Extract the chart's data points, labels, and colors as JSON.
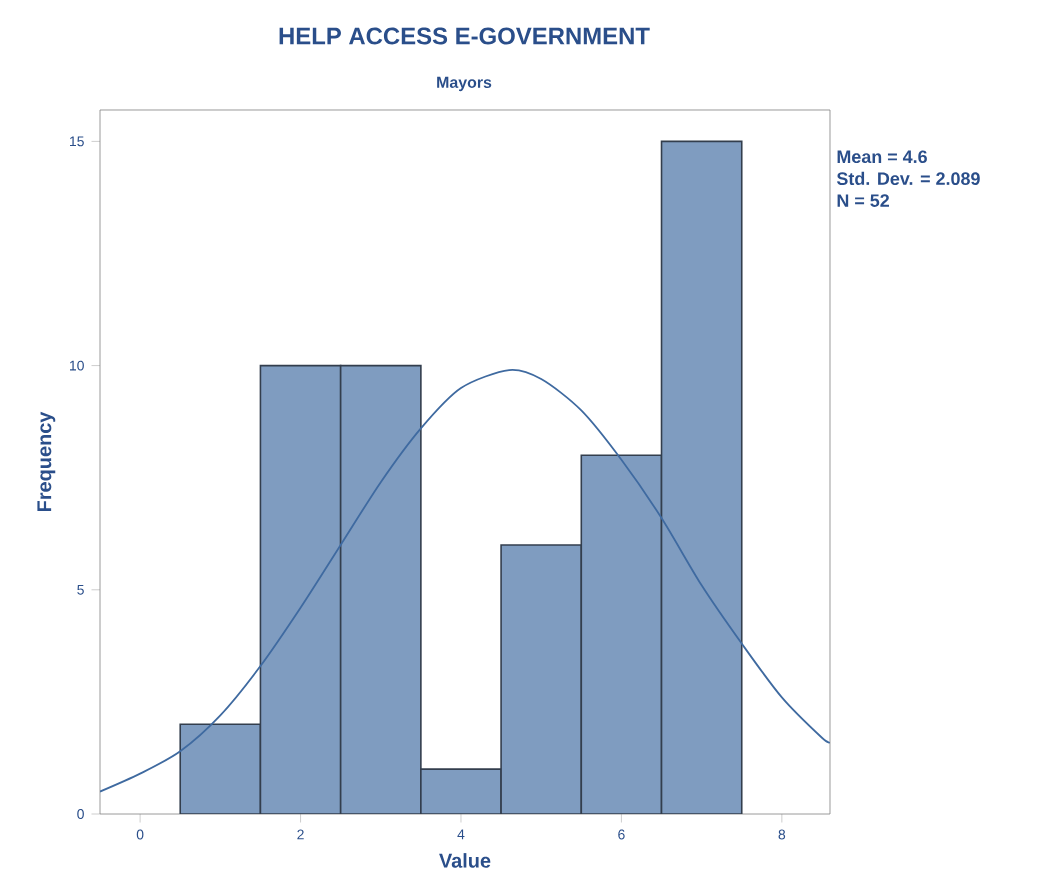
{
  "chart_data": {
    "type": "histogram",
    "title": "HELP ACCESS E-GOVERNMENT",
    "subtitle": "Mayors",
    "xlabel": "Value",
    "ylabel": "Frequency",
    "annotations": [
      "Mean = 4.6",
      "Std. Dev. = 2.089",
      "N = 52"
    ],
    "bins": [
      0.5,
      1.5,
      2.5,
      3.5,
      4.5,
      5.5,
      6.5,
      7.5
    ],
    "values": [
      2,
      10,
      10,
      1,
      6,
      8,
      15
    ],
    "color": "#7f9cc0",
    "series": [
      {
        "type": "line",
        "color": "#3f6aa0",
        "x": [
          -0.5,
          0,
          0.5,
          1,
          1.5,
          2,
          2.5,
          3,
          3.5,
          4,
          4.6,
          5,
          5.5,
          6,
          6.5,
          7,
          7.5,
          8,
          8.5,
          8.6
        ],
        "values": [
          0.5,
          0.9,
          1.4,
          2.2,
          3.3,
          4.6,
          6.0,
          7.4,
          8.6,
          9.5,
          9.9,
          9.7,
          9.0,
          7.9,
          6.6,
          5.1,
          3.8,
          2.6,
          1.7,
          1.6
        ]
      }
    ],
    "xlim": [
      -0.5,
      8.6
    ],
    "ylim": [
      0,
      15.7
    ],
    "xticks": [
      0,
      2,
      4,
      6,
      8
    ],
    "yticks": [
      0,
      5,
      10,
      15
    ]
  }
}
